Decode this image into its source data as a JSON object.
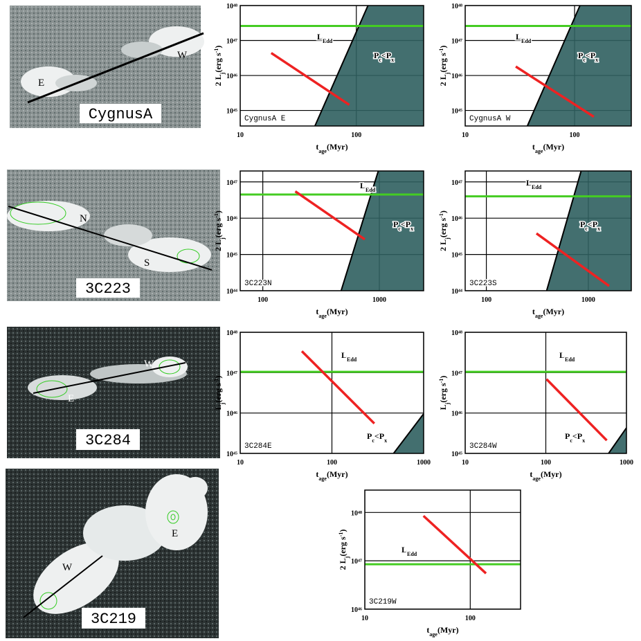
{
  "images": [
    {
      "title": "CygnusA",
      "labels": [
        "E",
        "W"
      ]
    },
    {
      "title": "3C223",
      "labels": [
        "N",
        "S"
      ]
    },
    {
      "title": "3C284",
      "labels": [
        "E",
        "W"
      ]
    },
    {
      "title": "3C219",
      "labels": [
        "W",
        "E"
      ]
    }
  ],
  "chart_data": [
    {
      "type": "line",
      "panel": "CygnusA E",
      "xlog": true,
      "ylog": true,
      "grid": true,
      "xlim": [
        10,
        380
      ],
      "ylim": [
        3.6e+44,
        1e+48
      ],
      "xticks": [
        10,
        100
      ],
      "yticks": [
        {
          "value": 1e+45,
          "label": "10⁴⁵"
        },
        {
          "value": 1e+46,
          "label": "10⁴⁶"
        },
        {
          "value": 1e+47,
          "label": "10⁴⁷"
        },
        {
          "value": 1e+48,
          "label": "10⁴⁸"
        }
      ],
      "xlabel": [
        {
          "t": "t"
        },
        {
          "t": "age",
          "s": "sub"
        },
        {
          "t": "(Myr)"
        }
      ],
      "ylabel": [
        {
          "t": "2 L"
        },
        {
          "t": "j",
          "s": "sub"
        },
        {
          "t": "(erg s"
        },
        {
          "t": "-1",
          "s": "sup"
        },
        {
          "t": ")"
        }
      ],
      "ledd": {
        "label": [
          {
            "t": "L"
          },
          {
            "t": "Edd",
            "s": "sub"
          }
        ],
        "value": 2.6e+47,
        "color": "#44cc22"
      },
      "jet": {
        "x": [
          18.5,
          87
        ],
        "values": [
          4.4e+46,
          1.45e+45
        ],
        "color": "#ee2222"
      },
      "shade": {
        "label": [
          {
            "t": "P"
          },
          {
            "t": "c",
            "s": "sub"
          },
          {
            "t": "<P"
          },
          {
            "t": "x",
            "s": "sub"
          }
        ],
        "x": [
          44,
          126
        ],
        "values": [
          3.6e+44,
          1e+48
        ],
        "color": "#2f5f5f"
      }
    },
    {
      "type": "line",
      "panel": "CygnusA W",
      "xlog": true,
      "ylog": true,
      "grid": true,
      "xlim": [
        10,
        330
      ],
      "ylim": [
        3.6e+44,
        1e+48
      ],
      "xticks": [
        10,
        100
      ],
      "yticks": [
        {
          "value": 1e+45,
          "label": "10⁴⁵"
        },
        {
          "value": 1e+46,
          "label": "10⁴⁶"
        },
        {
          "value": 1e+47,
          "label": "10⁴⁷"
        },
        {
          "value": 1e+48,
          "label": "10⁴⁸"
        }
      ],
      "xlabel": [
        {
          "t": "t"
        },
        {
          "t": "age",
          "s": "sub"
        },
        {
          "t": "(Myr)"
        }
      ],
      "ylabel": [
        {
          "t": "2 L"
        },
        {
          "t": "j",
          "s": "sub"
        },
        {
          "t": "(erg s"
        },
        {
          "t": "-1",
          "s": "sup"
        },
        {
          "t": ")"
        }
      ],
      "ledd": {
        "label": [
          {
            "t": "L"
          },
          {
            "t": "Edd",
            "s": "sub"
          }
        ],
        "value": 2.6e+47,
        "color": "#44cc22"
      },
      "jet": {
        "x": [
          29,
          150
        ],
        "values": [
          1.8e+46,
          6.6e+44
        ],
        "color": "#ee2222"
      },
      "shade": {
        "label": [
          {
            "t": "P"
          },
          {
            "t": "c",
            "s": "sub"
          },
          {
            "t": "<P"
          },
          {
            "t": "x",
            "s": "sub"
          }
        ],
        "x": [
          37,
          112
        ],
        "values": [
          3.6e+44,
          1e+48
        ],
        "color": "#2f5f5f"
      }
    },
    {
      "type": "line",
      "panel": "3C223N",
      "xlog": true,
      "ylog": true,
      "grid": true,
      "xlim": [
        64,
        2400
      ],
      "ylim": [
        1e+44,
        2e+47
      ],
      "xticks": [
        100,
        1000
      ],
      "yticks": [
        {
          "value": 1e+44,
          "label": "10⁴⁴"
        },
        {
          "value": 1e+45,
          "label": "10⁴⁵"
        },
        {
          "value": 1e+46,
          "label": "10⁴⁶"
        },
        {
          "value": 1e+47,
          "label": "10⁴⁷"
        }
      ],
      "xlabel": [
        {
          "t": "t"
        },
        {
          "t": "age",
          "s": "sub"
        },
        {
          "t": "(Myr)"
        }
      ],
      "ylabel": [
        {
          "t": "2 L"
        },
        {
          "t": "j",
          "s": "sub"
        },
        {
          "t": "(erg s"
        },
        {
          "t": "-1",
          "s": "sup"
        },
        {
          "t": ")"
        }
      ],
      "ledd": {
        "label": [
          {
            "t": "L"
          },
          {
            "t": "Edd",
            "s": "sub"
          }
        ],
        "value": 4.5e+46,
        "color": "#44cc22"
      },
      "jet": {
        "x": [
          190,
          750
        ],
        "values": [
          5.5e+46,
          2.6e+45
        ],
        "color": "#ee2222"
      },
      "shade": {
        "label": [
          {
            "t": "P"
          },
          {
            "t": "c",
            "s": "sub"
          },
          {
            "t": "<P"
          },
          {
            "t": "x",
            "s": "sub"
          }
        ],
        "x": [
          470,
          980
        ],
        "values": [
          1e+44,
          2e+47
        ],
        "color": "#2f5f5f"
      }
    },
    {
      "type": "line",
      "panel": "3C223S",
      "xlog": true,
      "ylog": true,
      "grid": true,
      "xlim": [
        62,
        2640
      ],
      "ylim": [
        1e+44,
        2e+47
      ],
      "xticks": [
        100,
        1000
      ],
      "yticks": [
        {
          "value": 1e+44,
          "label": "10⁴⁴"
        },
        {
          "value": 1e+45,
          "label": "10⁴⁵"
        },
        {
          "value": 1e+46,
          "label": "10⁴⁶"
        },
        {
          "value": 1e+47,
          "label": "10⁴⁷"
        }
      ],
      "xlabel": [
        {
          "t": "t"
        },
        {
          "t": "age",
          "s": "sub"
        },
        {
          "t": "(Myr)"
        }
      ],
      "ylabel": [
        {
          "t": "2 L"
        },
        {
          "t": "j",
          "s": "sub"
        },
        {
          "t": "(erg s"
        },
        {
          "t": "-1",
          "s": "sup"
        },
        {
          "t": ")"
        }
      ],
      "ledd": {
        "label": [
          {
            "t": "L"
          },
          {
            "t": "Edd",
            "s": "sub"
          }
        ],
        "value": 4e+46,
        "color": "#44cc22"
      },
      "jet": {
        "x": [
          310,
          1600
        ],
        "values": [
          3.8e+45,
          1.35e+44
        ],
        "color": "#ee2222"
      },
      "shade": {
        "label": [
          {
            "t": "P"
          },
          {
            "t": "c",
            "s": "sub"
          },
          {
            "t": "<P"
          },
          {
            "t": "x",
            "s": "sub"
          }
        ],
        "x": [
          390,
          850
        ],
        "values": [
          1e+44,
          2e+47
        ],
        "color": "#2f5f5f"
      }
    },
    {
      "type": "line",
      "panel": "3C284E",
      "xlog": true,
      "ylog": true,
      "grid": true,
      "xlim": [
        10,
        1000
      ],
      "ylim": [
        1e+45,
        1e+48
      ],
      "xticks": [
        10,
        100,
        1000
      ],
      "yticks": [
        {
          "value": 1e+45,
          "label": "10⁴⁵"
        },
        {
          "value": 1e+46,
          "label": "10⁴⁶"
        },
        {
          "value": 1e+47,
          "label": "10⁴⁷"
        },
        {
          "value": 1e+48,
          "label": "10⁴⁸"
        }
      ],
      "xlabel": [
        {
          "t": "t"
        },
        {
          "t": "age",
          "s": "sub"
        },
        {
          "t": "(Myr)"
        }
      ],
      "ylabel": [
        {
          "t": "L"
        },
        {
          "t": "j",
          "s": "sub"
        },
        {
          "t": "(erg s"
        },
        {
          "t": "-1",
          "s": "sup"
        },
        {
          "t": ")"
        }
      ],
      "ledd": {
        "label": [
          {
            "t": "L"
          },
          {
            "t": "Edd",
            "s": "sub"
          }
        ],
        "value": 1.05e+47,
        "color": "#44cc22"
      },
      "jet": {
        "x": [
          47,
          290
        ],
        "values": [
          3.4e+47,
          5.5e+45
        ],
        "color": "#ee2222"
      },
      "shade": {
        "label": [
          {
            "t": "P"
          },
          {
            "t": "c",
            "s": "sub"
          },
          {
            "t": "<P"
          },
          {
            "t": "x",
            "s": "sub"
          }
        ],
        "x": [
          470,
          1000
        ],
        "values": [
          1e+45,
          9.6e+45
        ],
        "color": "#2f5f5f"
      }
    },
    {
      "type": "line",
      "panel": "3C284W",
      "xlog": true,
      "ylog": true,
      "grid": true,
      "xlim": [
        10,
        1000
      ],
      "ylim": [
        1e+45,
        1e+48
      ],
      "xticks": [
        10,
        100,
        1000
      ],
      "yticks": [
        {
          "value": 1e+45,
          "label": "10⁴⁵"
        },
        {
          "value": 1e+46,
          "label": "10⁴⁶"
        },
        {
          "value": 1e+47,
          "label": "10⁴⁷"
        },
        {
          "value": 1e+48,
          "label": "10⁴⁸"
        }
      ],
      "xlabel": [
        {
          "t": "t"
        },
        {
          "t": "age",
          "s": "sub"
        },
        {
          "t": "(Myr)"
        }
      ],
      "ylabel": [
        {
          "t": "L"
        },
        {
          "t": "j",
          "s": "sub"
        },
        {
          "t": "(erg s"
        },
        {
          "t": "-1",
          "s": "sup"
        },
        {
          "t": ")"
        }
      ],
      "ledd": {
        "label": [
          {
            "t": "L"
          },
          {
            "t": "Edd",
            "s": "sub"
          }
        ],
        "value": 1.05e+47,
        "color": "#44cc22"
      },
      "jet": {
        "x": [
          102,
          570
        ],
        "values": [
          6.9e+46,
          2.1e+45
        ],
        "color": "#ee2222"
      },
      "shade": {
        "label": [
          {
            "t": "P"
          },
          {
            "t": "c",
            "s": "sub"
          },
          {
            "t": "<P"
          },
          {
            "t": "x",
            "s": "sub"
          }
        ],
        "x": [
          600,
          1000
        ],
        "values": [
          1e+45,
          4.3e+45
        ],
        "color": "#2f5f5f"
      }
    },
    {
      "type": "line",
      "panel": "3C219W",
      "xlog": true,
      "ylog": true,
      "grid": true,
      "xlim": [
        10,
        300
      ],
      "ylim": [
        1e+46,
        2.9e+48
      ],
      "xticks": [
        10,
        100
      ],
      "yticks": [
        {
          "value": 1e+46,
          "label": "10⁴⁶"
        },
        {
          "value": 1e+47,
          "label": "10⁴⁷"
        },
        {
          "value": 1e+48,
          "label": "10⁴⁸"
        }
      ],
      "xlabel": [
        {
          "t": "t"
        },
        {
          "t": "age",
          "s": "sub"
        },
        {
          "t": "(Myr)"
        }
      ],
      "ylabel": [
        {
          "t": "2 L"
        },
        {
          "t": "j",
          "s": "sub"
        },
        {
          "t": "(erg s"
        },
        {
          "t": "-1",
          "s": "sup"
        },
        {
          "t": ")"
        }
      ],
      "ledd": {
        "label": [
          {
            "t": "L"
          },
          {
            "t": "Edd",
            "s": "sub"
          }
        ],
        "value": 8.5e+46,
        "color": "#44cc22"
      },
      "jet": {
        "x": [
          36,
          141
        ],
        "values": [
          8.5e+47,
          5.5e+46
        ],
        "color": "#ee2222"
      }
    }
  ]
}
